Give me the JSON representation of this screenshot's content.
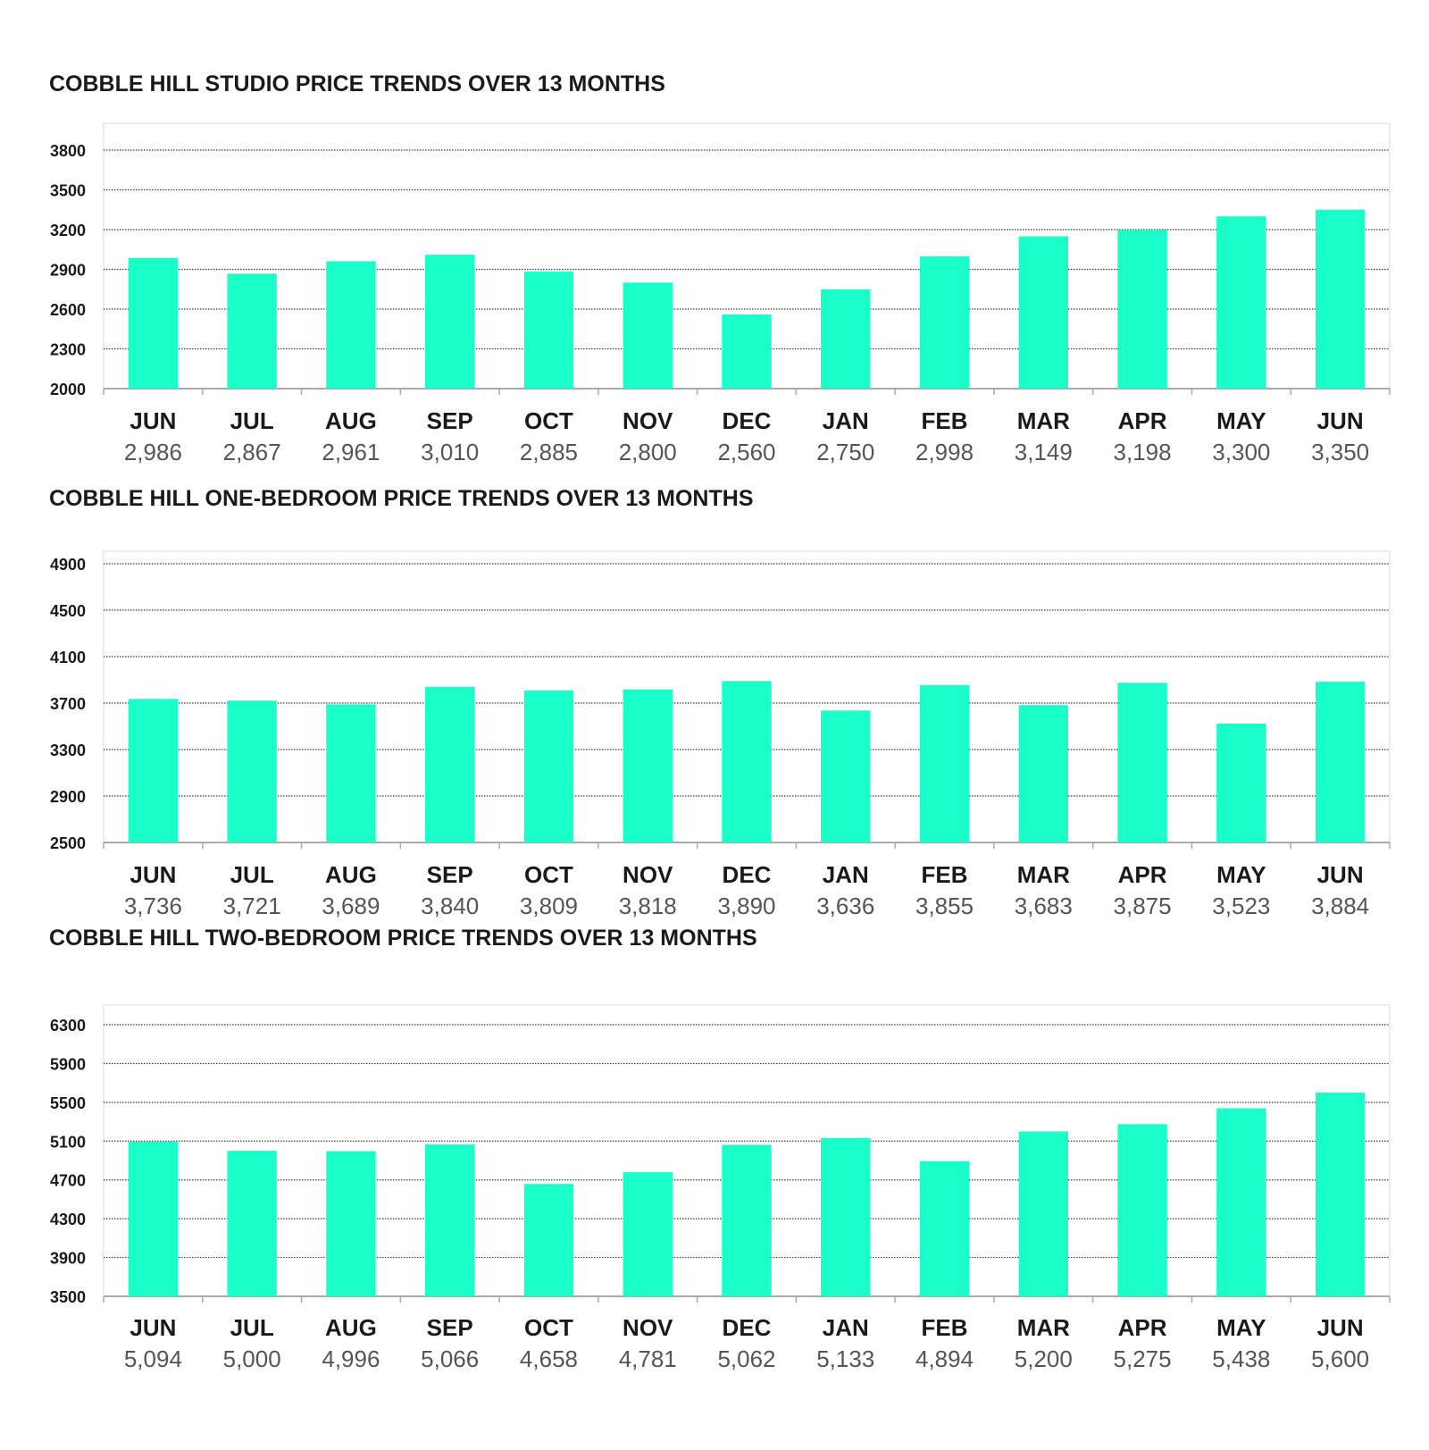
{
  "colors": {
    "bar": "#1affc9",
    "grid": "#3a3a3a",
    "axis": "#aaaaaa",
    "frame": "#d9d9d9",
    "label": "#1a1a1a",
    "value": "#555555"
  },
  "chart_data": [
    {
      "type": "bar",
      "title": "COBBLE HILL STUDIO PRICE TRENDS OVER 13 MONTHS",
      "categories": [
        "JUN",
        "JUL",
        "AUG",
        "SEP",
        "OCT",
        "NOV",
        "DEC",
        "JAN",
        "FEB",
        "MAR",
        "APR",
        "MAY",
        "JUN"
      ],
      "values": [
        2986,
        2867,
        2961,
        3010,
        2885,
        2800,
        2560,
        2750,
        2998,
        3149,
        3198,
        3300,
        3350
      ],
      "value_labels": [
        "2,986",
        "2,867",
        "2,961",
        "3,010",
        "2,885",
        "2,800",
        "2,560",
        "2,750",
        "2,998",
        "3,149",
        "3,198",
        "3,300",
        "3,350"
      ],
      "yticks": [
        2000,
        2300,
        2600,
        2900,
        3200,
        3500,
        3800
      ],
      "ylim": [
        2000,
        3800
      ],
      "grid": true,
      "legend": "none"
    },
    {
      "type": "bar",
      "title": "COBBLE HILL ONE-BEDROOM PRICE TRENDS OVER 13 MONTHS",
      "categories": [
        "JUN",
        "JUL",
        "AUG",
        "SEP",
        "OCT",
        "NOV",
        "DEC",
        "JAN",
        "FEB",
        "MAR",
        "APR",
        "MAY",
        "JUN"
      ],
      "values": [
        3736,
        3721,
        3689,
        3840,
        3809,
        3818,
        3890,
        3636,
        3855,
        3683,
        3875,
        3523,
        3884
      ],
      "value_labels": [
        "3,736",
        "3,721",
        "3,689",
        "3,840",
        "3,809",
        "3,818",
        "3,890",
        "3,636",
        "3,855",
        "3,683",
        "3,875",
        "3,523",
        "3,884"
      ],
      "yticks": [
        2500,
        2900,
        3300,
        3700,
        4100,
        4500,
        4900
      ],
      "ylim": [
        2500,
        4900
      ],
      "grid": true,
      "legend": "none"
    },
    {
      "type": "bar",
      "title": "COBBLE HILL TWO-BEDROOM PRICE TRENDS OVER 13 MONTHS",
      "categories": [
        "JUN",
        "JUL",
        "AUG",
        "SEP",
        "OCT",
        "NOV",
        "DEC",
        "JAN",
        "FEB",
        "MAR",
        "APR",
        "MAY",
        "JUN"
      ],
      "values": [
        5094,
        5000,
        4996,
        5066,
        4658,
        4781,
        5062,
        5133,
        4894,
        5200,
        5275,
        5438,
        5600
      ],
      "value_labels": [
        "5,094",
        "5,000",
        "4,996",
        "5,066",
        "4,658",
        "4,781",
        "5,062",
        "5,133",
        "4,894",
        "5,200",
        "5,275",
        "5,438",
        "5,600"
      ],
      "yticks": [
        3500,
        3900,
        4300,
        4700,
        5100,
        5500,
        5900,
        6300
      ],
      "ylim": [
        3500,
        6300
      ],
      "grid": true,
      "legend": "none"
    }
  ]
}
